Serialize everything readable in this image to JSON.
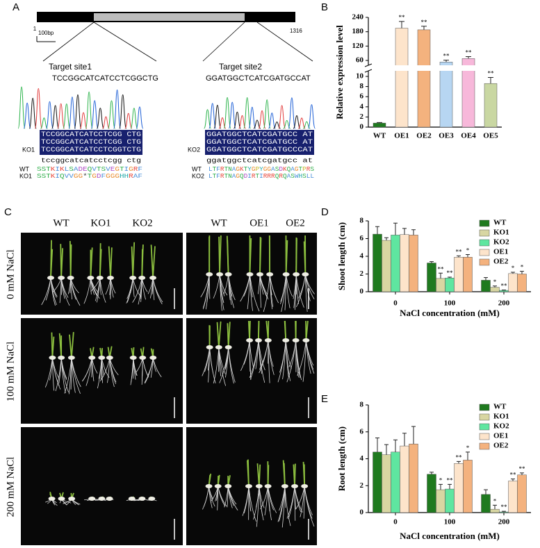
{
  "panel_a": {
    "label": "A",
    "gene_start": "1",
    "scale_bar": "100bp",
    "gene_end": "1316",
    "sites": [
      {
        "name": "Target site1",
        "sequence": "TCCGGCATCATCCTCGGCTG",
        "alignment": [
          "TCCGGCATCATCCTCGG CTG",
          "TCCGGCATCATCCTCGG CTG",
          "TCCGGCATCATCCTCGGTCTG"
        ],
        "line": "KO1",
        "consensus": "tccggcatcatcctcgg ctg",
        "proteins": [
          {
            "name": "WT",
            "sequence": "SSTKIKLSADEQVTSVEGTIGRF"
          },
          {
            "name": "KO1",
            "sequence": "SSTKIQVVGG*TGDFGGGHHRAF"
          }
        ]
      },
      {
        "name": "Target site2",
        "sequence": "GGATGGCTCATCGATGCCAT",
        "alignment": [
          "GGATGGCTCATCGATGCC AT",
          "GGATGGCTCATCGATGCC AT",
          "GGATGGCTCATCGATGCCCAT"
        ],
        "line": "KO2",
        "consensus": "ggatggctcatcgatgcc at",
        "proteins": [
          {
            "name": "WT",
            "sequence": "LTFRTNAGKTYGPYGGASDKQAGTPRS"
          },
          {
            "name": "KO2",
            "sequence": "LTFRTNAGQDIRTIRRRQRQASWHSLL"
          }
        ]
      }
    ]
  },
  "panel_c": {
    "label": "C",
    "left_columns": [
      "WT",
      "KO1",
      "KO2"
    ],
    "right_columns": [
      "WT",
      "OE1",
      "OE2"
    ],
    "rows": [
      "0 mM NaCl",
      "100 mM NaCl",
      "200 mM NaCl"
    ]
  },
  "chart_data": [
    {
      "type": "bar",
      "panel_label": "B",
      "ylabel": "Relative expression level",
      "categories": [
        "WT",
        "OE1",
        "OE2",
        "OE3",
        "OE4",
        "OE5"
      ],
      "values": [
        0.8,
        195,
        188,
        55,
        68,
        8.6
      ],
      "errors": [
        0.1,
        28,
        15,
        6,
        8,
        1.2
      ],
      "annotations": [
        null,
        "**",
        "**",
        "**",
        "**",
        "**"
      ],
      "colors": [
        "#1f7a1f",
        "#fde4cb",
        "#f4b27e",
        "#b7d6f2",
        "#f7b8da",
        "#c9d7a2"
      ],
      "ylim": [
        0,
        240
      ],
      "axis_break": [
        10,
        60
      ],
      "yticks": [
        0,
        2,
        4,
        6,
        8,
        10,
        60,
        120,
        180,
        240
      ]
    },
    {
      "type": "grouped_bar",
      "panel_label": "D",
      "ylabel": "Shoot length (cm)",
      "xlabel": "NaCl concentration (mM)",
      "categories": [
        "0",
        "100",
        "200"
      ],
      "series": [
        {
          "name": "WT",
          "color": "#1f7a1f",
          "values": [
            6.5,
            3.25,
            1.3
          ],
          "errors": [
            0.85,
            0.15,
            0.3
          ],
          "annotations": [
            null,
            null,
            null
          ]
        },
        {
          "name": "KO1",
          "color": "#d8d6a2",
          "values": [
            5.8,
            1.5,
            0.5
          ],
          "errors": [
            0.3,
            0.6,
            0.15
          ],
          "annotations": [
            null,
            "**",
            "*"
          ]
        },
        {
          "name": "KO2",
          "color": "#5fe6a0",
          "values": [
            6.4,
            1.55,
            0.15
          ],
          "errors": [
            1.35,
            0.1,
            0.05
          ],
          "annotations": [
            null,
            "**",
            "**"
          ]
        },
        {
          "name": "OE1",
          "color": "#fde4cb",
          "values": [
            6.45,
            3.9,
            2.05
          ],
          "errors": [
            0.7,
            0.15,
            0.15
          ],
          "annotations": [
            null,
            "**",
            "*"
          ]
        },
        {
          "name": "OE2",
          "color": "#f4b27e",
          "values": [
            6.4,
            3.9,
            2.0
          ],
          "errors": [
            0.6,
            0.3,
            0.3
          ],
          "annotations": [
            null,
            "*",
            "*"
          ]
        }
      ],
      "ylim": [
        0,
        8
      ],
      "yticks": [
        0,
        2,
        4,
        6,
        8
      ],
      "legend": "upper-right"
    },
    {
      "type": "grouped_bar",
      "panel_label": "E",
      "ylabel": "Root length (cm)",
      "xlabel": "NaCl concentration (mM)",
      "categories": [
        "0",
        "100",
        "200"
      ],
      "series": [
        {
          "name": "WT",
          "color": "#1f7a1f",
          "values": [
            4.5,
            2.85,
            1.35
          ],
          "errors": [
            1.05,
            0.15,
            0.35
          ],
          "annotations": [
            null,
            null,
            null
          ]
        },
        {
          "name": "KO1",
          "color": "#d8d6a2",
          "values": [
            4.3,
            1.7,
            0.25
          ],
          "errors": [
            0.75,
            0.4,
            0.3
          ],
          "annotations": [
            null,
            "*",
            "*"
          ]
        },
        {
          "name": "KO2",
          "color": "#5fe6a0",
          "values": [
            4.5,
            1.75,
            0.05
          ],
          "errors": [
            0.9,
            0.35,
            0.05
          ],
          "annotations": [
            null,
            "**",
            "**"
          ]
        },
        {
          "name": "OE1",
          "color": "#fde4cb",
          "values": [
            4.95,
            3.65,
            2.35
          ],
          "errors": [
            0.95,
            0.15,
            0.15
          ],
          "annotations": [
            null,
            "**",
            "**"
          ]
        },
        {
          "name": "OE2",
          "color": "#f4b27e",
          "values": [
            5.1,
            3.9,
            2.8
          ],
          "errors": [
            1.3,
            0.6,
            0.15
          ],
          "annotations": [
            null,
            "*",
            "**"
          ]
        }
      ],
      "ylim": [
        0,
        8
      ],
      "yticks": [
        0,
        2,
        4,
        6,
        8
      ],
      "legend": "upper-right"
    }
  ]
}
